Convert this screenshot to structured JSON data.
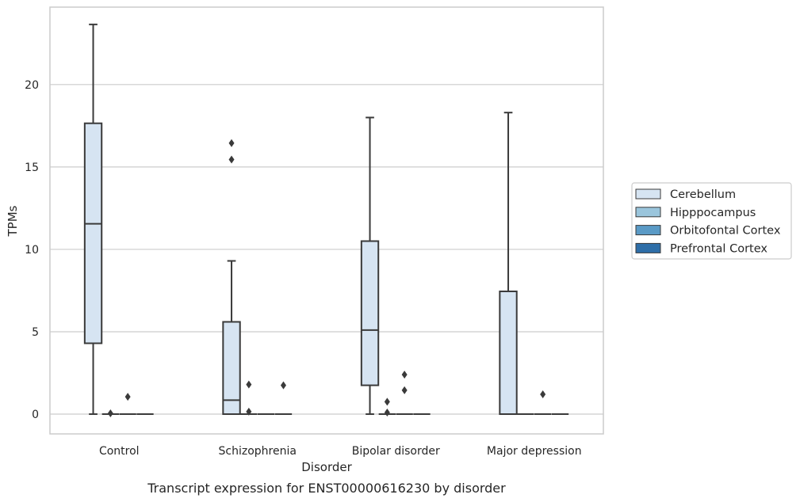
{
  "chart_data": {
    "type": "box",
    "title": "",
    "caption": "Transcript expression for ENST00000616230 by disorder",
    "xlabel": "Disorder",
    "ylabel": "TPMs",
    "categories": [
      "Control",
      "Schizophrenia",
      "Bipolar disorder",
      "Major depression"
    ],
    "yticks": [
      0,
      5,
      10,
      15,
      20
    ],
    "ytick_labels": [
      "0",
      "5",
      "10",
      "15",
      "20"
    ],
    "ylim": [
      -1.2,
      24.7
    ],
    "grid": "horizontal",
    "legend_placement": "right",
    "series": [
      {
        "name": "Cerebellum",
        "color": "#d6e4f2",
        "boxes": [
          {
            "category": "Control",
            "q1": 4.3,
            "median": 11.55,
            "q3": 17.65,
            "whisker_low": 0,
            "whisker_high": 23.65,
            "outliers": []
          },
          {
            "category": "Schizophrenia",
            "q1": 0,
            "median": 0.85,
            "q3": 5.6,
            "whisker_low": 0,
            "whisker_high": 9.3,
            "outliers": [
              15.45,
              16.45
            ]
          },
          {
            "category": "Bipolar disorder",
            "q1": 1.75,
            "median": 5.1,
            "q3": 10.5,
            "whisker_low": 0,
            "whisker_high": 18.0,
            "outliers": []
          },
          {
            "category": "Major depression",
            "q1": 0,
            "median": 0,
            "q3": 7.45,
            "whisker_low": 0,
            "whisker_high": 18.3,
            "outliers": []
          }
        ]
      },
      {
        "name": "Hipppocampus",
        "color": "#9ac5dc",
        "boxes": [
          {
            "category": "Control",
            "q1": 0,
            "median": 0,
            "q3": 0,
            "whisker_low": 0,
            "whisker_high": 0,
            "outliers": [
              0.05
            ]
          },
          {
            "category": "Schizophrenia",
            "q1": 0,
            "median": 0,
            "q3": 0,
            "whisker_low": 0,
            "whisker_high": 0,
            "outliers": [
              0.15,
              1.8
            ]
          },
          {
            "category": "Bipolar disorder",
            "q1": 0,
            "median": 0,
            "q3": 0,
            "whisker_low": 0,
            "whisker_high": 0,
            "outliers": [
              0.1,
              0.75
            ]
          },
          {
            "category": "Major depression",
            "q1": 0,
            "median": 0,
            "q3": 0,
            "whisker_low": 0,
            "whisker_high": 0,
            "outliers": []
          }
        ]
      },
      {
        "name": "Orbitofontal Cortex",
        "color": "#5a9ac6",
        "boxes": [
          {
            "category": "Control",
            "q1": 0,
            "median": 0,
            "q3": 0,
            "whisker_low": 0,
            "whisker_high": 0,
            "outliers": [
              1.05
            ]
          },
          {
            "category": "Schizophrenia",
            "q1": 0,
            "median": 0,
            "q3": 0,
            "whisker_low": 0,
            "whisker_high": 0,
            "outliers": []
          },
          {
            "category": "Bipolar disorder",
            "q1": 0,
            "median": 0,
            "q3": 0,
            "whisker_low": 0,
            "whisker_high": 0,
            "outliers": [
              1.45,
              2.4
            ]
          },
          {
            "category": "Major depression",
            "q1": 0,
            "median": 0,
            "q3": 0,
            "whisker_low": 0,
            "whisker_high": 0,
            "outliers": [
              1.2
            ]
          }
        ]
      },
      {
        "name": "Prefrontal Cortex",
        "color": "#2e6ea8",
        "boxes": [
          {
            "category": "Control",
            "q1": 0,
            "median": 0,
            "q3": 0,
            "whisker_low": 0,
            "whisker_high": 0,
            "outliers": []
          },
          {
            "category": "Schizophrenia",
            "q1": 0,
            "median": 0,
            "q3": 0,
            "whisker_low": 0,
            "whisker_high": 0,
            "outliers": [
              1.75
            ]
          },
          {
            "category": "Bipolar disorder",
            "q1": 0,
            "median": 0,
            "q3": 0,
            "whisker_low": 0,
            "whisker_high": 0,
            "outliers": []
          },
          {
            "category": "Major depression",
            "q1": 0,
            "median": 0,
            "q3": 0,
            "whisker_low": 0,
            "whisker_high": 0,
            "outliers": []
          }
        ]
      }
    ]
  }
}
